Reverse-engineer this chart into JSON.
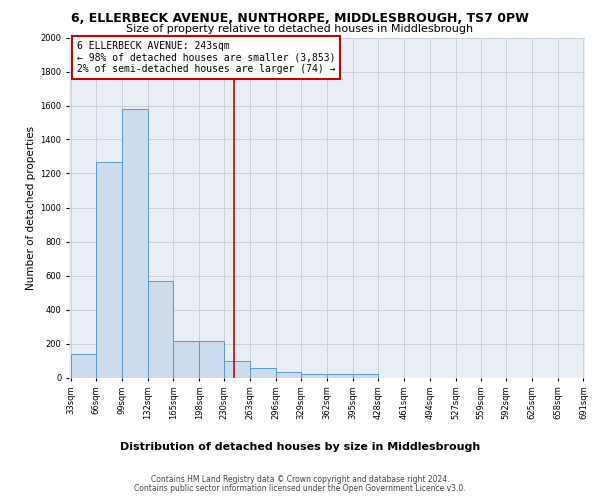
{
  "title1": "6, ELLERBECK AVENUE, NUNTHORPE, MIDDLESBROUGH, TS7 0PW",
  "title2": "Size of property relative to detached houses in Middlesbrough",
  "xlabel": "Distribution of detached houses by size in Middlesbrough",
  "ylabel": "Number of detached properties",
  "bar_edges": [
    33,
    66,
    99,
    132,
    165,
    198,
    230,
    263,
    296,
    329,
    362,
    395,
    428,
    461,
    494,
    527,
    559,
    592,
    625,
    658,
    691
  ],
  "bar_heights": [
    140,
    1270,
    1580,
    570,
    215,
    215,
    100,
    55,
    30,
    20,
    20,
    20,
    0,
    0,
    0,
    0,
    0,
    0,
    0,
    0
  ],
  "bar_color": "#ccdcec",
  "bar_edge_color": "#5599cc",
  "vline_x": 243,
  "vline_color": "#cc0000",
  "ylim": [
    0,
    2000
  ],
  "yticks": [
    0,
    200,
    400,
    600,
    800,
    1000,
    1200,
    1400,
    1600,
    1800,
    2000
  ],
  "annotation_text": "6 ELLERBECK AVENUE: 243sqm\n← 98% of detached houses are smaller (3,853)\n2% of semi-detached houses are larger (74) →",
  "annotation_box_color": "#ffffff",
  "annotation_box_edgecolor": "#cc0000",
  "footer_line1": "Contains HM Land Registry data © Crown copyright and database right 2024.",
  "footer_line2": "Contains public sector information licensed under the Open Government Licence v3.0.",
  "background_color": "#e8eef4",
  "grid_color": "#c8d0d8",
  "title1_fontsize": 9,
  "title2_fontsize": 8,
  "ylabel_fontsize": 7.5,
  "xlabel_fontsize": 8,
  "tick_fontsize": 6,
  "annotation_fontsize": 7,
  "footer_fontsize": 5.5
}
